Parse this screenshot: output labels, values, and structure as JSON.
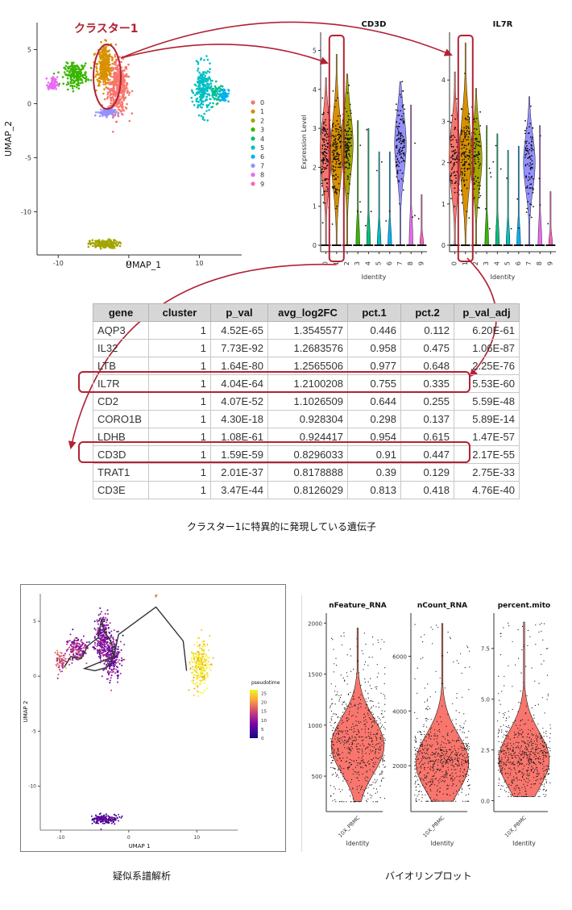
{
  "annotations": {
    "cluster1_label": "クラスター1",
    "caption_markers": "クラスター1に特異的に発現している遺伝子",
    "caption_pseudotime": "疑似系譜解析",
    "caption_violin": "バイオリンプロット"
  },
  "colors": {
    "highlight": "#b22234",
    "cluster_palette": [
      "#f8766d",
      "#d89000",
      "#a3a500",
      "#39b600",
      "#00bf7d",
      "#00bfc4",
      "#00b0f6",
      "#9590ff",
      "#e76bf3",
      "#ff62bc"
    ]
  },
  "chart_data": [
    {
      "type": "scatter",
      "id": "umap_clusters",
      "xlabel": "UMAP_1",
      "ylabel": "UMAP_2",
      "xticks": [
        "-10",
        "0",
        "10"
      ],
      "yticks": [
        "5",
        "0",
        "-5",
        "-10"
      ],
      "xlim": [
        -13,
        16
      ],
      "ylim": [
        -14,
        7.5
      ],
      "legend_placement": "right",
      "legend": [
        "0",
        "1",
        "2",
        "3",
        "4",
        "5",
        "6",
        "7",
        "8",
        "9"
      ],
      "clusters": [
        {
          "name": "0",
          "cx": -1.5,
          "cy": 1.5,
          "sx": 1.3,
          "sy": 2.2,
          "n": 420
        },
        {
          "name": "1",
          "cx": -3.5,
          "cy": 3.6,
          "sx": 0.9,
          "sy": 1.7,
          "n": 320
        },
        {
          "name": "2",
          "cx": -3.5,
          "cy": -13.0,
          "sx": 1.8,
          "sy": 0.35,
          "n": 180
        },
        {
          "name": "3",
          "cx": -7.5,
          "cy": 2.7,
          "sx": 1.5,
          "sy": 0.9,
          "n": 200
        },
        {
          "name": "4",
          "cx": 12.5,
          "cy": 1.0,
          "sx": 0.9,
          "sy": 0.8,
          "n": 60
        },
        {
          "name": "5",
          "cx": 10.5,
          "cy": 1.2,
          "sx": 1.1,
          "sy": 2.0,
          "n": 220
        },
        {
          "name": "6",
          "cx": 13.5,
          "cy": 0.8,
          "sx": 0.6,
          "sy": 0.6,
          "n": 50
        },
        {
          "name": "7",
          "cx": -3.2,
          "cy": -0.8,
          "sx": 1.1,
          "sy": 0.35,
          "n": 90
        },
        {
          "name": "8",
          "cx": -10.8,
          "cy": 1.8,
          "sx": 0.6,
          "sy": 0.6,
          "n": 60
        },
        {
          "name": "9",
          "cx": -2,
          "cy": 7.3,
          "sx": 0.1,
          "sy": 0.1,
          "n": 3
        }
      ]
    },
    {
      "type": "violin",
      "id": "cd3d_violin",
      "title": "CD3D",
      "ylabel": "Expression Level",
      "xlabel": "Identity",
      "categories": [
        "0",
        "1",
        "2",
        "3",
        "4",
        "5",
        "6",
        "7",
        "8",
        "9"
      ],
      "yticks": [
        "0",
        "1",
        "2",
        "3",
        "4",
        "5"
      ],
      "ylim": [
        0,
        5.3
      ],
      "medians": [
        2.4,
        2.4,
        2.6,
        0,
        0,
        0,
        0,
        2.6,
        0,
        0
      ],
      "maxima": [
        4.3,
        4.9,
        4.4,
        3.2,
        3.0,
        2.4,
        2.4,
        4.2,
        3.6,
        1.3
      ],
      "expressing_fraction": [
        0.9,
        0.91,
        0.85,
        0.12,
        0.1,
        0.05,
        0.05,
        0.8,
        0.1,
        0.02
      ]
    },
    {
      "type": "violin",
      "id": "il7r_violin",
      "title": "IL7R",
      "ylabel": "",
      "xlabel": "Identity",
      "categories": [
        "0",
        "1",
        "2",
        "3",
        "4",
        "5",
        "6",
        "7",
        "8",
        "9"
      ],
      "yticks": [
        "0",
        "1",
        "2",
        "3",
        "4"
      ],
      "ylim": [
        0,
        5
      ],
      "medians": [
        2.1,
        2.2,
        2.1,
        0,
        0,
        0,
        0,
        2.0,
        0,
        0
      ],
      "maxima": [
        4.2,
        4.9,
        3.8,
        2.9,
        2.7,
        2.3,
        2.4,
        3.6,
        2.9,
        1.3
      ],
      "expressing_fraction": [
        0.6,
        0.75,
        0.65,
        0.15,
        0.1,
        0.05,
        0.05,
        0.6,
        0.1,
        0.02
      ]
    },
    {
      "type": "table",
      "id": "marker_genes",
      "columns": [
        "gene",
        "cluster",
        "p_val",
        "avg_log2FC",
        "pct.1",
        "pct.2",
        "p_val_adj"
      ],
      "rows": [
        [
          "AQP3",
          "1",
          "4.52E-65",
          "1.3545577",
          "0.446",
          "0.112",
          "6.20E-61"
        ],
        [
          "IL32",
          "1",
          "7.73E-92",
          "1.2683576",
          "0.958",
          "0.475",
          "1.06E-87"
        ],
        [
          "LTB",
          "1",
          "1.64E-80",
          "1.2565506",
          "0.977",
          "0.648",
          "2.25E-76"
        ],
        [
          "IL7R",
          "1",
          "4.04E-64",
          "1.2100208",
          "0.755",
          "0.335",
          "5.53E-60"
        ],
        [
          "CD2",
          "1",
          "4.07E-52",
          "1.1026509",
          "0.644",
          "0.255",
          "5.59E-48"
        ],
        [
          "CORO1B",
          "1",
          "4.30E-18",
          "0.928304",
          "0.298",
          "0.137",
          "5.89E-14"
        ],
        [
          "LDHB",
          "1",
          "1.08E-61",
          "0.924417",
          "0.954",
          "0.615",
          "1.47E-57"
        ],
        [
          "CD3D",
          "1",
          "1.59E-59",
          "0.8296033",
          "0.91",
          "0.447",
          "2.17E-55"
        ],
        [
          "TRAT1",
          "1",
          "2.01E-37",
          "0.8178888",
          "0.39",
          "0.129",
          "2.75E-33"
        ],
        [
          "CD3E",
          "1",
          "3.47E-44",
          "0.8126029",
          "0.813",
          "0.418",
          "4.76E-40"
        ]
      ],
      "highlighted_genes": [
        "IL7R",
        "CD3D"
      ]
    },
    {
      "type": "scatter",
      "id": "umap_pseudotime",
      "xlabel": "UMAP 1",
      "ylabel": "UMAP 2",
      "xticks": [
        "-10",
        "0",
        "10"
      ],
      "yticks": [
        "5",
        "0",
        "-5",
        "-10"
      ],
      "xlim": [
        -13,
        16
      ],
      "ylim": [
        -14,
        7.5
      ],
      "legend_title": "pseudotime",
      "legend_ticks": [
        "25",
        "20",
        "15",
        "10",
        "5",
        "0"
      ],
      "colorbar_range": [
        0,
        27
      ],
      "legend_placement": "right",
      "trajectory": [
        [
          -9.5,
          0.8
        ],
        [
          -8.5,
          1.8
        ],
        [
          -7,
          1.6
        ],
        [
          -6,
          2.8
        ],
        [
          -4.5,
          3.5
        ],
        [
          -4,
          5.2
        ],
        [
          -3.5,
          4.0
        ],
        [
          -2.5,
          3.0
        ],
        [
          -2.2,
          1.8
        ],
        [
          -3.2,
          0.8
        ],
        [
          -5,
          0.5
        ],
        [
          -6.5,
          0.7
        ],
        [
          -2.2,
          1.8
        ],
        [
          -1.5,
          3.8
        ],
        [
          4,
          6.3
        ],
        [
          8,
          3.2
        ],
        [
          8.5,
          0.5
        ]
      ]
    },
    {
      "type": "violin",
      "id": "nfeature_violin",
      "title": "nFeature_RNA",
      "xlabel": "Identity",
      "categories": [
        "10X_PBMC"
      ],
      "yticks": [
        "500",
        "1000",
        "1500",
        "2000"
      ],
      "ylim": [
        200,
        2050
      ],
      "median": 800,
      "min": 250,
      "max": 1950
    },
    {
      "type": "violin",
      "id": "ncount_violin",
      "title": "nCount_RNA",
      "xlabel": "Identity",
      "categories": [
        "10X_PBMC"
      ],
      "yticks": [
        "2000",
        "4000",
        "6000"
      ],
      "ylim": [
        500,
        7400
      ],
      "median": 2100,
      "min": 700,
      "max": 7200
    },
    {
      "type": "violin",
      "id": "percent_mito_violin",
      "title": "percent.mito",
      "xlabel": "Identity",
      "categories": [
        "10X_PBMC"
      ],
      "yticks": [
        "0.0",
        "2.5",
        "5.0",
        "7.5"
      ],
      "ylim": [
        -0.3,
        9.0
      ],
      "median": 2.0,
      "min": 0.2,
      "max": 8.8
    }
  ]
}
